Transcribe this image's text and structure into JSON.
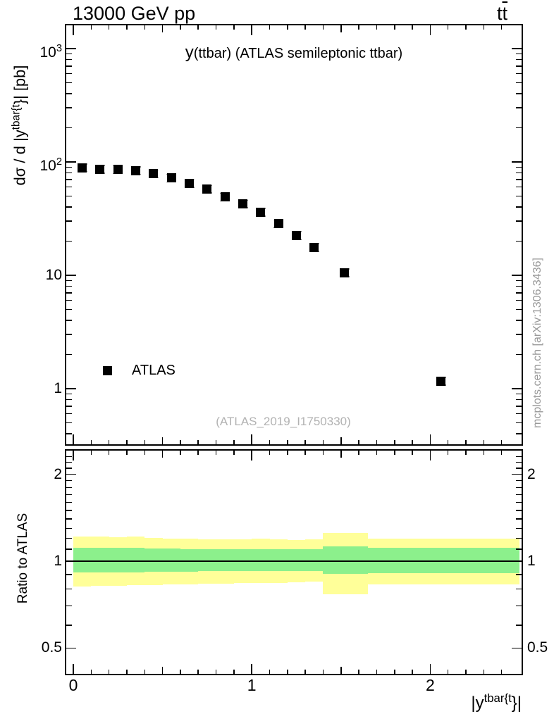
{
  "header": {
    "energy_beam": "13000 GeV pp",
    "process_t": "t",
    "process_tbar": "t"
  },
  "side_note": "mcplots.cern.ch [arXiv:1306.3436]",
  "watermark": "(ATLAS_2019_I1750330)",
  "chart_data": {
    "type": "scatter",
    "title_lead": "y",
    "title_rest": "(ttbar) (ATLAS semileptonic ttbar)",
    "xlabel_parts": [
      "|y",
      "tbar{t",
      "}|"
    ],
    "ylabel_parts": [
      "dσ / d |y",
      "tbar{t",
      "}| [pb]"
    ],
    "x_axis": {
      "range": [
        0,
        2.5
      ],
      "major_ticks": [
        0,
        1,
        2
      ],
      "mid_step": 0.5,
      "minor_step": 0.1
    },
    "y_axis": {
      "scale": "log",
      "range": [
        0.33,
        1630
      ],
      "major_ticks": [
        1,
        10,
        100,
        1000
      ],
      "tick_labels": [
        "1",
        "10",
        "10^2",
        "10^3"
      ]
    },
    "series": [
      {
        "name": "ATLAS",
        "marker": "filled-square",
        "color": "#000000",
        "error_color": "#888888",
        "yerr_frac": 0.08,
        "x": [
          0.05,
          0.15,
          0.25,
          0.35,
          0.45,
          0.55,
          0.65,
          0.75,
          0.85,
          0.95,
          1.05,
          1.15,
          1.25,
          1.35,
          1.52,
          2.06
        ],
        "y": [
          89,
          86,
          85.5,
          84,
          78.5,
          72,
          64.5,
          57.5,
          49,
          42.5,
          36,
          28.5,
          22.4,
          17.6,
          10.5,
          1.16
        ]
      }
    ],
    "legend": {
      "entries": [
        "ATLAS"
      ],
      "position": "bottom-left"
    },
    "ratio_panel": {
      "ylabel": "Ratio to ATLAS",
      "y_axis": {
        "scale": "log",
        "range": [
          0.41,
          2.44
        ],
        "major_ticks": [
          2,
          1,
          0.5
        ],
        "tick_labels": [
          "2",
          "1",
          "0.5"
        ]
      },
      "reference_line": 1,
      "band_colors": {
        "outer_total_error": "#ffff99",
        "inner_stat_error": "#8cf08c"
      },
      "bands": [
        {
          "xlo": 0.0,
          "xhi": 0.1,
          "outer": [
            0.815,
            1.215
          ],
          "inner": [
            0.915,
            1.112
          ]
        },
        {
          "xlo": 0.1,
          "xhi": 0.2,
          "outer": [
            0.82,
            1.215
          ],
          "inner": [
            0.915,
            1.112
          ]
        },
        {
          "xlo": 0.2,
          "xhi": 0.3,
          "outer": [
            0.82,
            1.21
          ],
          "inner": [
            0.915,
            1.11
          ]
        },
        {
          "xlo": 0.3,
          "xhi": 0.4,
          "outer": [
            0.825,
            1.215
          ],
          "inner": [
            0.916,
            1.112
          ]
        },
        {
          "xlo": 0.4,
          "xhi": 0.5,
          "outer": [
            0.825,
            1.205
          ],
          "inner": [
            0.918,
            1.108
          ]
        },
        {
          "xlo": 0.5,
          "xhi": 0.6,
          "outer": [
            0.83,
            1.2
          ],
          "inner": [
            0.92,
            1.105
          ]
        },
        {
          "xlo": 0.6,
          "xhi": 0.7,
          "outer": [
            0.83,
            1.195
          ],
          "inner": [
            0.92,
            1.103
          ]
        },
        {
          "xlo": 0.7,
          "xhi": 0.8,
          "outer": [
            0.835,
            1.19
          ],
          "inner": [
            0.922,
            1.1
          ]
        },
        {
          "xlo": 0.8,
          "xhi": 0.9,
          "outer": [
            0.835,
            1.19
          ],
          "inner": [
            0.922,
            1.1
          ]
        },
        {
          "xlo": 0.9,
          "xhi": 1.0,
          "outer": [
            0.84,
            1.19
          ],
          "inner": [
            0.923,
            1.1
          ]
        },
        {
          "xlo": 1.0,
          "xhi": 1.1,
          "outer": [
            0.84,
            1.195
          ],
          "inner": [
            0.923,
            1.1
          ]
        },
        {
          "xlo": 1.1,
          "xhi": 1.2,
          "outer": [
            0.84,
            1.19
          ],
          "inner": [
            0.924,
            1.1
          ]
        },
        {
          "xlo": 1.2,
          "xhi": 1.3,
          "outer": [
            0.845,
            1.185
          ],
          "inner": [
            0.925,
            1.1
          ]
        },
        {
          "xlo": 1.3,
          "xhi": 1.4,
          "outer": [
            0.85,
            1.19
          ],
          "inner": [
            0.925,
            1.102
          ]
        },
        {
          "xlo": 1.4,
          "xhi": 1.65,
          "outer": [
            0.77,
            1.255
          ],
          "inner": [
            0.905,
            1.127
          ]
        },
        {
          "xlo": 1.65,
          "xhi": 2.5,
          "outer": [
            0.83,
            1.2
          ],
          "inner": [
            0.91,
            1.112
          ]
        }
      ]
    }
  }
}
